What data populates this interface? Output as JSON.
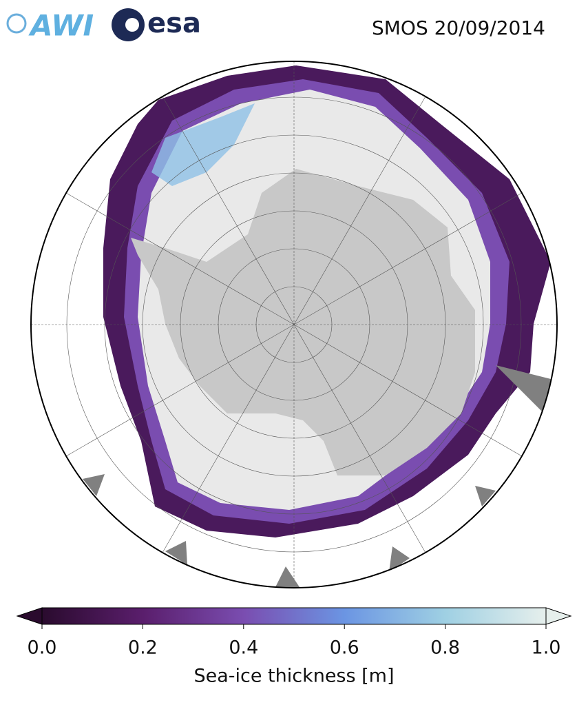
{
  "header": {
    "logo_left": "AWI",
    "logo_right": "esa",
    "title": "SMOS 20/09/2014"
  },
  "colorbar": {
    "lim": [
      0,
      1
    ],
    "ticks": [
      {
        "value": 0,
        "label": "0.0"
      },
      {
        "value": 0.2,
        "label": "0.2"
      },
      {
        "value": 0.4,
        "label": "0.4"
      },
      {
        "value": 0.6,
        "label": "0.6"
      },
      {
        "value": 0.8,
        "label": "0.8"
      },
      {
        "value": 1,
        "label": "1.0"
      }
    ],
    "label": "Sea-ice thickness [m]"
  }
}
